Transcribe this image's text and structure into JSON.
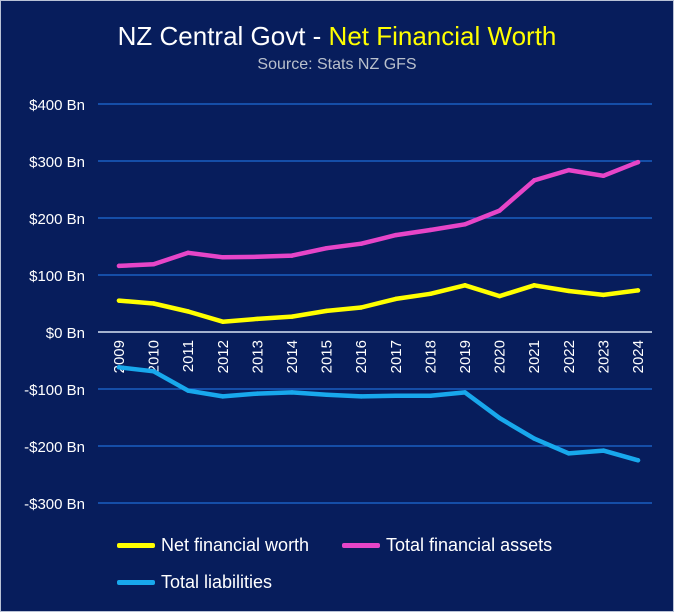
{
  "title": {
    "prefix": "NZ Central Govt - ",
    "highlight": "Net Financial Worth"
  },
  "subtitle": "Source: Stats NZ GFS",
  "colors": {
    "background": "#071d5c",
    "grid": "#1e6bd6",
    "axis_text": "#ffffff",
    "net_financial_worth": "#ffff00",
    "total_financial_assets": "#e645c8",
    "total_liabilities": "#18a8ec"
  },
  "chart_data": {
    "type": "line",
    "title": "NZ Central Govt - Net Financial Worth",
    "subtitle": "Source: Stats NZ GFS",
    "xlabel": "",
    "ylabel": "",
    "ylim": [
      -300,
      400
    ],
    "yticks": [
      400,
      300,
      200,
      100,
      0,
      -100,
      -200,
      -300
    ],
    "ytick_labels": [
      "$400 Bn",
      "$300 Bn",
      "$200 Bn",
      "$100 Bn",
      "$0 Bn",
      "-$100 Bn",
      "-$200 Bn",
      "-$300 Bn"
    ],
    "grid": true,
    "legend_position": "bottom",
    "categories": [
      "2009",
      "2010",
      "2011",
      "2012",
      "2013",
      "2014",
      "2015",
      "2016",
      "2017",
      "2018",
      "2019",
      "2020",
      "2021",
      "2022",
      "2023",
      "2024"
    ],
    "series": [
      {
        "name": "Net financial worth",
        "color": "#ffff00",
        "values": [
          55,
          50,
          36,
          18,
          23,
          27,
          37,
          43,
          58,
          67,
          82,
          63,
          82,
          72,
          65,
          73
        ]
      },
      {
        "name": "Total financial assets",
        "color": "#e645c8",
        "values": [
          116,
          119,
          139,
          131,
          132,
          134,
          147,
          155,
          170,
          179,
          189,
          213,
          266,
          284,
          274,
          298
        ]
      },
      {
        "name": "Total liabilities",
        "color": "#18a8ec",
        "values": [
          -62,
          -69,
          -103,
          -113,
          -108,
          -106,
          -110,
          -113,
          -112,
          -112,
          -106,
          -151,
          -187,
          -213,
          -208,
          -225
        ]
      }
    ]
  }
}
